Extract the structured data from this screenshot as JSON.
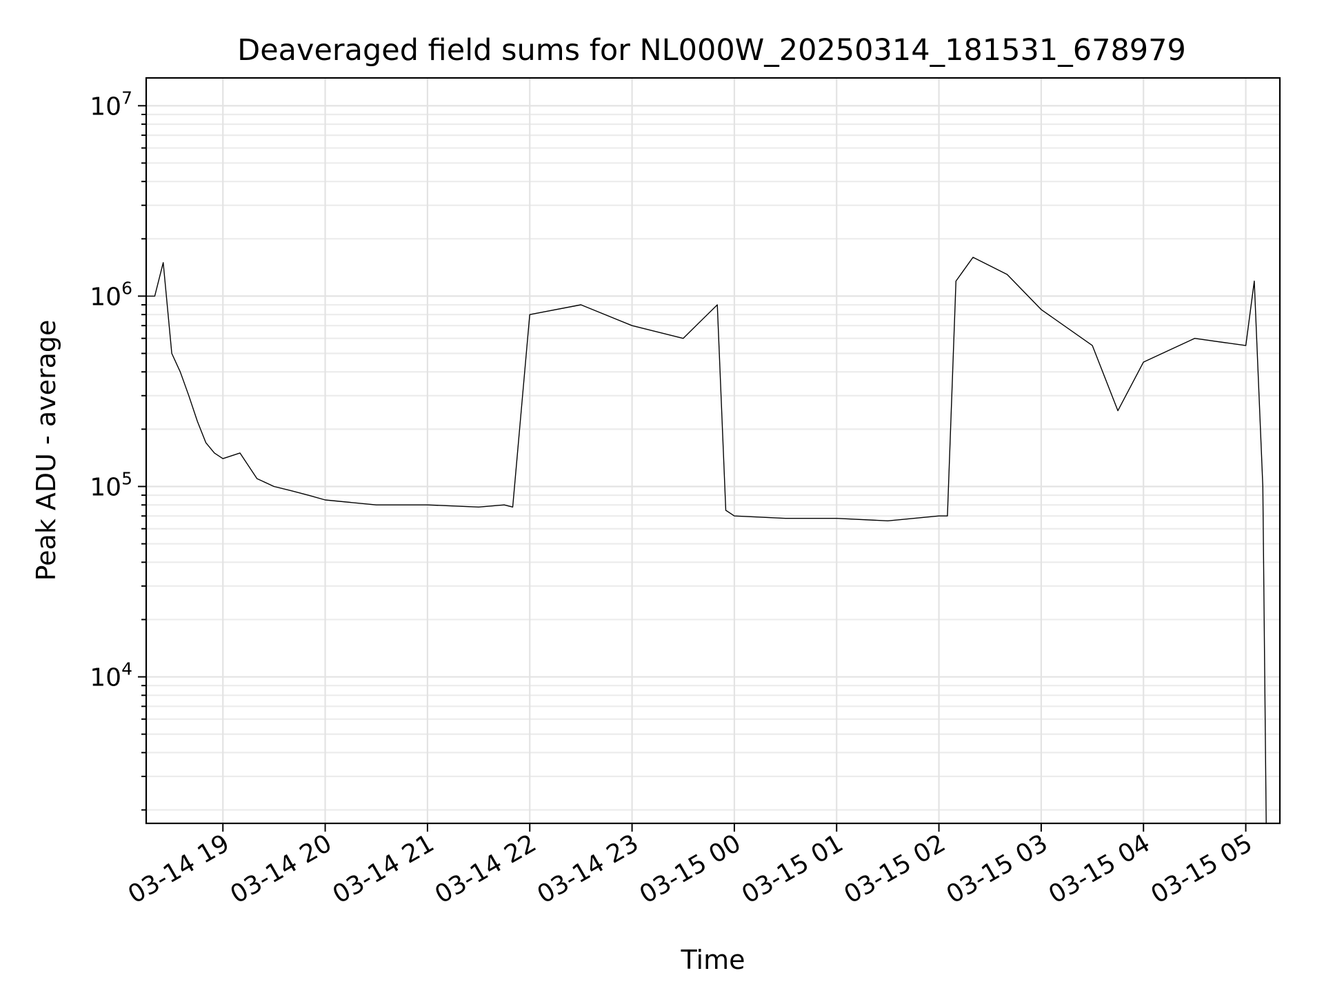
{
  "chart_data": {
    "type": "line",
    "title": "Deaveraged field sums for NL000W_20250314_181531_678979",
    "xlabel": "Time",
    "ylabel": "Peak ADU - average",
    "yscale": "log",
    "ylim": [
      1700,
      14000000
    ],
    "xlim": [
      "2025-03-14 18:15",
      "2025-03-15 05:20"
    ],
    "grid": true,
    "legend": "none",
    "line_color": "#000000",
    "x_ticks": [
      {
        "value": "2025-03-14 19:00",
        "label": "03-14 19"
      },
      {
        "value": "2025-03-14 20:00",
        "label": "03-14 20"
      },
      {
        "value": "2025-03-14 21:00",
        "label": "03-14 21"
      },
      {
        "value": "2025-03-14 22:00",
        "label": "03-14 22"
      },
      {
        "value": "2025-03-14 23:00",
        "label": "03-14 23"
      },
      {
        "value": "2025-03-15 00:00",
        "label": "03-15 00"
      },
      {
        "value": "2025-03-15 01:00",
        "label": "03-15 01"
      },
      {
        "value": "2025-03-15 02:00",
        "label": "03-15 02"
      },
      {
        "value": "2025-03-15 03:00",
        "label": "03-15 03"
      },
      {
        "value": "2025-03-15 04:00",
        "label": "03-15 04"
      },
      {
        "value": "2025-03-15 05:00",
        "label": "03-15 05"
      }
    ],
    "y_ticks": [
      {
        "value": 10000,
        "base": "10",
        "exp": "4"
      },
      {
        "value": 100000,
        "base": "10",
        "exp": "5"
      },
      {
        "value": 1000000,
        "base": "10",
        "exp": "6"
      },
      {
        "value": 10000000,
        "base": "10",
        "exp": "7"
      }
    ],
    "series": [
      {
        "x": [
          "2025-03-14 18:15",
          "2025-03-14 18:20",
          "2025-03-14 18:25",
          "2025-03-14 18:30",
          "2025-03-14 18:35",
          "2025-03-14 18:40",
          "2025-03-14 18:45",
          "2025-03-14 18:50",
          "2025-03-14 18:55",
          "2025-03-14 19:00",
          "2025-03-14 19:10",
          "2025-03-14 19:20",
          "2025-03-14 19:30",
          "2025-03-14 19:40",
          "2025-03-14 19:50",
          "2025-03-14 20:00",
          "2025-03-14 20:30",
          "2025-03-14 21:00",
          "2025-03-14 21:30",
          "2025-03-14 21:45",
          "2025-03-14 21:50",
          "2025-03-14 22:00",
          "2025-03-14 22:30",
          "2025-03-14 23:00",
          "2025-03-14 23:30",
          "2025-03-14 23:50",
          "2025-03-14 23:55",
          "2025-03-15 00:00",
          "2025-03-15 00:30",
          "2025-03-15 01:00",
          "2025-03-15 01:30",
          "2025-03-15 02:00",
          "2025-03-15 02:05",
          "2025-03-15 02:10",
          "2025-03-15 02:20",
          "2025-03-15 02:40",
          "2025-03-15 03:00",
          "2025-03-15 03:30",
          "2025-03-15 03:45",
          "2025-03-15 04:00",
          "2025-03-15 04:30",
          "2025-03-15 05:00",
          "2025-03-15 05:05",
          "2025-03-15 05:10",
          "2025-03-15 05:12"
        ],
        "values": [
          1000000,
          1000000,
          1500000,
          500000,
          400000,
          300000,
          220000,
          170000,
          150000,
          140000,
          150000,
          110000,
          100000,
          95000,
          90000,
          85000,
          80000,
          80000,
          78000,
          80000,
          78000,
          800000,
          900000,
          700000,
          600000,
          900000,
          75000,
          70000,
          68000,
          68000,
          66000,
          70000,
          70000,
          1200000,
          1600000,
          1300000,
          850000,
          550000,
          250000,
          450000,
          600000,
          550000,
          1200000,
          100000,
          1700
        ]
      }
    ]
  }
}
